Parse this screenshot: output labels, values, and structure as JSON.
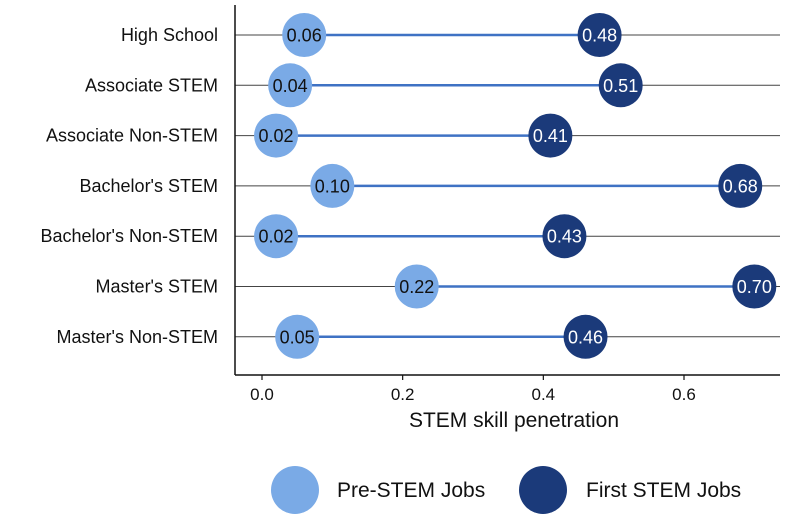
{
  "chart_data": {
    "type": "dumbbell",
    "xlabel": "STEM skill penetration",
    "ylabel": "",
    "xlim": [
      -0.02,
      0.73
    ],
    "xticks": [
      0.0,
      0.2,
      0.4,
      0.6
    ],
    "xtick_labels": [
      "0.0",
      "0.2",
      "0.4",
      "0.6"
    ],
    "grid": "horizontal",
    "legend_placement": "bottom",
    "categories": [
      "High School",
      "Associate STEM",
      "Associate Non-STEM",
      "Bachelor's STEM",
      "Bachelor's Non-STEM",
      "Master's STEM",
      "Master's Non-STEM"
    ],
    "series": [
      {
        "name": "Pre-STEM Jobs",
        "color": "#7aaae6",
        "values": [
          0.06,
          0.04,
          0.02,
          0.1,
          0.02,
          0.22,
          0.05
        ],
        "value_labels": [
          "0.06",
          "0.04",
          "0.02",
          "0.10",
          "0.02",
          "0.22",
          "0.05"
        ]
      },
      {
        "name": "First STEM Jobs",
        "color": "#1b3a7a",
        "values": [
          0.48,
          0.51,
          0.41,
          0.68,
          0.43,
          0.7,
          0.46
        ],
        "value_labels": [
          "0.48",
          "0.51",
          "0.41",
          "0.68",
          "0.43",
          "0.70",
          "0.46"
        ]
      }
    ],
    "connector_color": "#3f72c4",
    "gridline_color": "#444444"
  }
}
